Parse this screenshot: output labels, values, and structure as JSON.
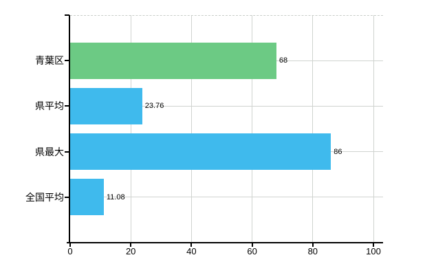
{
  "chart_data": {
    "type": "bar",
    "orientation": "horizontal",
    "title": "",
    "categories": [
      "青葉区",
      "県平均",
      "県最大",
      "全国平均"
    ],
    "values": [
      68,
      23.76,
      86,
      11.08
    ],
    "value_labels": [
      "68",
      "23.76",
      "86",
      "11.08"
    ],
    "bar_colors": [
      "#6cca84",
      "#3fbaed",
      "#3fbaed",
      "#3fbaed"
    ],
    "xlabel": "",
    "ylabel": "",
    "xlim": [
      0,
      100
    ],
    "x_ticks": [
      0,
      20,
      40,
      60,
      80,
      100
    ],
    "x_tick_labels": [
      "0",
      "20",
      "40",
      "60",
      "80",
      "100"
    ],
    "grid": "on",
    "legend": "none"
  },
  "colors": {
    "background": "#ffffff",
    "axis": "#000000",
    "grid": "#cfd3cf",
    "text": "#000000",
    "bar_green": "#6cca84",
    "bar_blue": "#3fbaed"
  }
}
